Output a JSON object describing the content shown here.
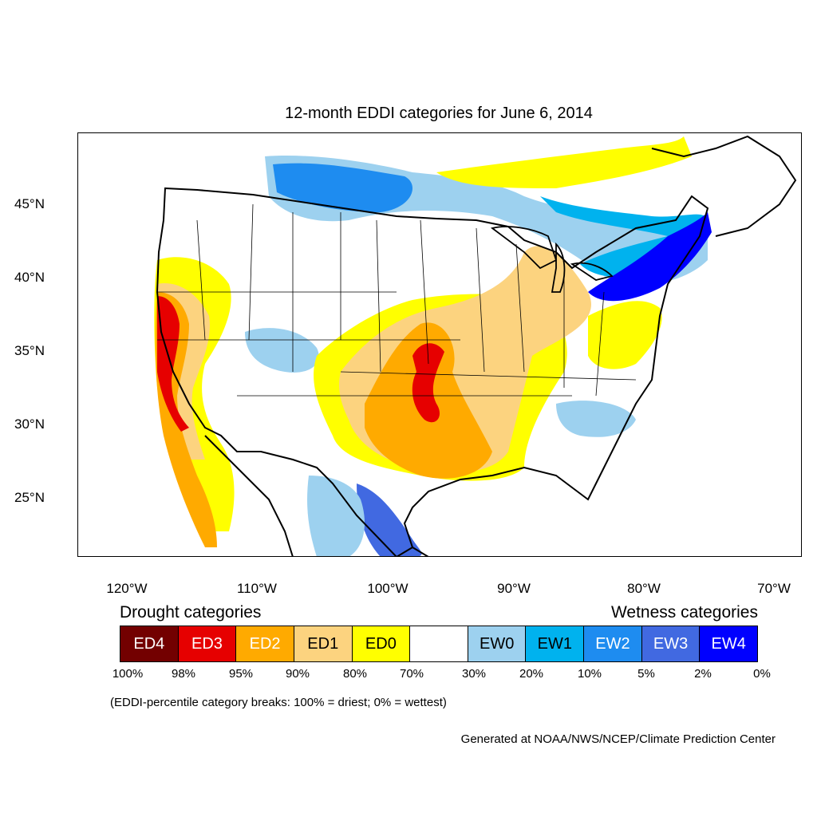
{
  "map": {
    "title": "12-month EDDI categories for June 6, 2014",
    "lat_labels": [
      "45°N",
      "40°N",
      "35°N",
      "30°N",
      "25°N"
    ],
    "lon_labels": [
      "120°W",
      "110°W",
      "100°W",
      "90°W",
      "80°W",
      "70°W"
    ]
  },
  "legend": {
    "drought_heading": "Drought categories",
    "wetness_heading": "Wetness categories",
    "categories": [
      {
        "label": "ED4",
        "color": "#730000",
        "text_color": "#ffffff"
      },
      {
        "label": "ED3",
        "color": "#e60000",
        "text_color": "#ffffff"
      },
      {
        "label": "ED2",
        "color": "#ffaa00",
        "text_color": "#ffffff"
      },
      {
        "label": "ED1",
        "color": "#fcd37f",
        "text_color": "#000000"
      },
      {
        "label": "ED0",
        "color": "#ffff00",
        "text_color": "#000000"
      },
      {
        "label": "",
        "color": "#ffffff",
        "text_color": "#000000"
      },
      {
        "label": "EW0",
        "color": "#9dd1ef",
        "text_color": "#000000"
      },
      {
        "label": "EW1",
        "color": "#00b2ee",
        "text_color": "#000000"
      },
      {
        "label": "EW2",
        "color": "#1e8cf0",
        "text_color": "#ffffff"
      },
      {
        "label": "EW3",
        "color": "#4169e1",
        "text_color": "#ffffff"
      },
      {
        "label": "EW4",
        "color": "#0000ff",
        "text_color": "#ffffff"
      }
    ],
    "percent_breaks": [
      "100%",
      "98%",
      "95%",
      "90%",
      "80%",
      "70%",
      "30%",
      "20%",
      "10%",
      "5%",
      "2%",
      "0%"
    ],
    "note": "(EDDI-percentile category breaks: 100% = driest; 0% = wettest)"
  },
  "credit": "Generated at NOAA/NWS/NCEP/Climate Prediction Center"
}
